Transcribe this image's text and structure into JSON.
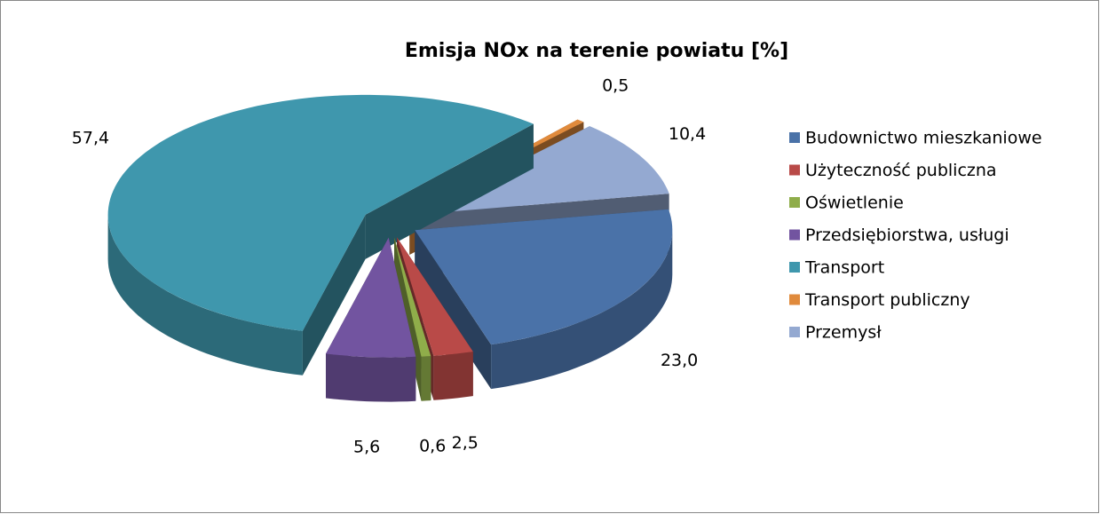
{
  "chart_data": {
    "type": "pie",
    "title": "Emisja NOx na terenie powiatu [%]",
    "categories": [
      "Budownictwo mieszkaniowe",
      "Użyteczność publiczna",
      "Oświetlenie",
      "Przedsiębiorstwa, usługi",
      "Transport",
      "Transport publiczny",
      "Przemysł"
    ],
    "values": [
      23.0,
      2.5,
      0.6,
      5.6,
      57.4,
      0.5,
      10.4
    ],
    "value_labels": [
      "23,0",
      "2,5",
      "0,6",
      "5,6",
      "57,4",
      "0,5",
      "10,4"
    ],
    "colors": [
      "#4a72a8",
      "#b94a48",
      "#8fad4a",
      "#7254a0",
      "#3f97ad",
      "#e08a3c",
      "#94a9d1"
    ],
    "legend": "right"
  }
}
